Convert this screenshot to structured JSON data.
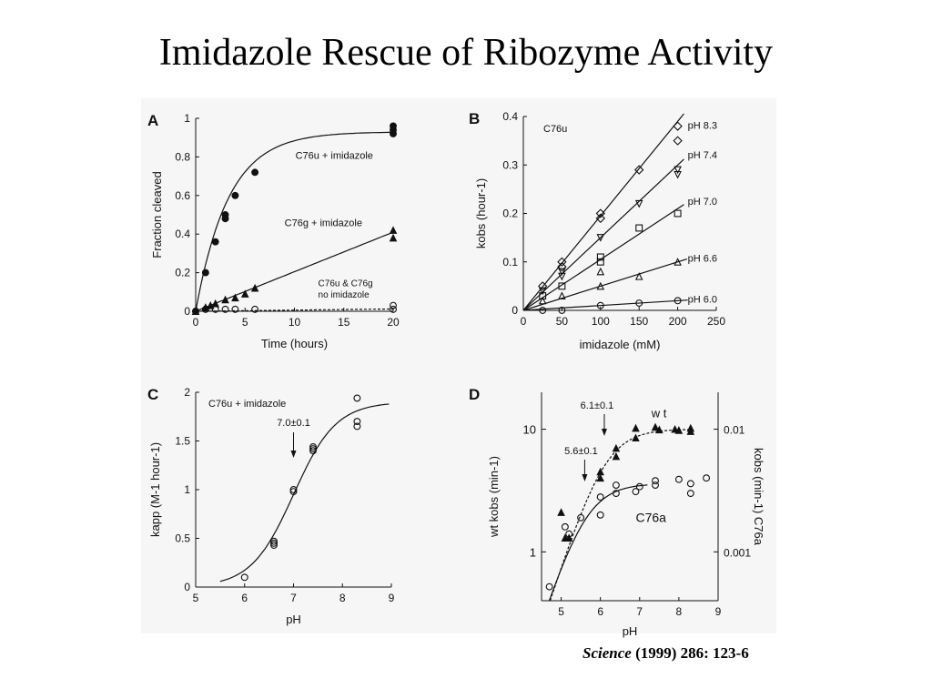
{
  "slide": {
    "title": "Imidazole Rescue of Ribozyme Activity",
    "citation_journal": "Science",
    "citation_rest": " (1999) 286:  123-6"
  },
  "chart_data": [
    {
      "panel": "A",
      "type": "scatter",
      "xlabel": "Time (hours)",
      "ylabel": "Fraction cleaved",
      "xlim": [
        0,
        20
      ],
      "ylim": [
        0,
        1
      ],
      "xticks": [
        0,
        5,
        10,
        15,
        20
      ],
      "xtick_labels": [
        "0",
        "5",
        "10",
        "15",
        "20"
      ],
      "yticks": [
        0,
        0.2,
        0.4,
        0.6,
        0.8,
        1
      ],
      "ytick_labels": [
        "0",
        "0.2",
        "0.4",
        "0.6",
        "0.8",
        "1"
      ],
      "series": [
        {
          "name": "C76u + imidazole",
          "marker": "filled-circle",
          "points": [
            [
              0,
              0
            ],
            [
              1,
              0.2
            ],
            [
              2,
              0.36
            ],
            [
              3,
              0.48
            ],
            [
              3,
              0.5
            ],
            [
              4,
              0.6
            ],
            [
              6,
              0.72
            ],
            [
              20,
              0.92
            ],
            [
              20,
              0.94
            ],
            [
              20,
              0.96
            ]
          ],
          "fit": "exp",
          "fit_params": {
            "ymax": 0.93,
            "k": 0.3
          }
        },
        {
          "name": "C76g + imidazole",
          "marker": "filled-triangle",
          "points": [
            [
              0,
              0
            ],
            [
              1,
              0.02
            ],
            [
              1.5,
              0.03
            ],
            [
              2,
              0.04
            ],
            [
              3,
              0.06
            ],
            [
              4,
              0.07
            ],
            [
              5,
              0.09
            ],
            [
              6,
              0.12
            ],
            [
              20,
              0.38
            ],
            [
              20,
              0.42
            ]
          ],
          "fit": "linear",
          "fit_params": {
            "slope": 0.0205,
            "intercept": 0
          }
        },
        {
          "name": "C76u & C76g\nno imidazole",
          "marker": "open-circle",
          "points": [
            [
              0,
              0
            ],
            [
              1,
              0.01
            ],
            [
              2,
              0.01
            ],
            [
              3,
              0.01
            ],
            [
              4,
              0.01
            ],
            [
              6,
              0.01
            ],
            [
              20,
              0.01
            ],
            [
              20,
              0.03
            ]
          ],
          "fit": "linear",
          "fit_params": {
            "slope": 0.0006,
            "intercept": 0
          }
        }
      ]
    },
    {
      "panel": "B",
      "type": "scatter",
      "xlabel": "imidazole (mM)",
      "ylabel": "kobs (hour-1)",
      "annotation": "C76u",
      "xlim": [
        0,
        250
      ],
      "ylim": [
        0,
        0.4
      ],
      "xticks": [
        0,
        50,
        100,
        150,
        200,
        250
      ],
      "xtick_labels": [
        "0",
        "50",
        "100",
        "150",
        "200",
        "250"
      ],
      "yticks": [
        0,
        0.1,
        0.2,
        0.3,
        0.4
      ],
      "ytick_labels": [
        "0",
        "0.1",
        "0.2",
        "0.3",
        "0.4"
      ],
      "series": [
        {
          "name": "pH 8.3",
          "marker": "open-diamond",
          "slope": 0.00195,
          "points": [
            [
              25,
              0.05
            ],
            [
              50,
              0.09
            ],
            [
              50,
              0.1
            ],
            [
              100,
              0.19
            ],
            [
              100,
              0.2
            ],
            [
              150,
              0.29
            ],
            [
              200,
              0.35
            ],
            [
              200,
              0.38
            ]
          ]
        },
        {
          "name": "pH 7.4",
          "marker": "open-down-triangle",
          "slope": 0.0015,
          "points": [
            [
              25,
              0.04
            ],
            [
              50,
              0.07
            ],
            [
              50,
              0.08
            ],
            [
              100,
              0.15
            ],
            [
              150,
              0.22
            ],
            [
              200,
              0.28
            ],
            [
              200,
              0.29
            ]
          ]
        },
        {
          "name": "pH 7.0",
          "marker": "open-square",
          "slope": 0.00105,
          "points": [
            [
              25,
              0.03
            ],
            [
              50,
              0.05
            ],
            [
              100,
              0.1
            ],
            [
              100,
              0.11
            ],
            [
              150,
              0.17
            ],
            [
              200,
              0.2
            ]
          ]
        },
        {
          "name": "pH 6.6",
          "marker": "open-triangle",
          "slope": 0.0005,
          "points": [
            [
              25,
              0.02
            ],
            [
              50,
              0.03
            ],
            [
              100,
              0.05
            ],
            [
              100,
              0.08
            ],
            [
              150,
              0.07
            ],
            [
              200,
              0.1
            ]
          ]
        },
        {
          "name": "pH 6.0",
          "marker": "open-circle",
          "slope": 0.0001,
          "points": [
            [
              25,
              0.0
            ],
            [
              50,
              0.0
            ],
            [
              100,
              0.01
            ],
            [
              150,
              0.015
            ],
            [
              200,
              0.02
            ]
          ]
        }
      ]
    },
    {
      "panel": "C",
      "type": "scatter",
      "xlabel": "pH",
      "ylabel": "kapp (M-1 hour-1)",
      "annotation": "C76u + imidazole",
      "arrow_label": "7.0±0.1",
      "arrow_x": 7.0,
      "xlim": [
        5,
        9
      ],
      "ylim": [
        0,
        2
      ],
      "xticks": [
        5,
        6,
        7,
        8,
        9
      ],
      "xtick_labels": [
        "5",
        "6",
        "7",
        "8",
        "9"
      ],
      "yticks": [
        0,
        0.5,
        1,
        1.5,
        2
      ],
      "ytick_labels": [
        "0",
        "0.5",
        "1",
        "1.5",
        "2"
      ],
      "series": [
        {
          "name": "",
          "marker": "open-circle",
          "points": [
            [
              6.0,
              0.1
            ],
            [
              6.6,
              0.43
            ],
            [
              6.6,
              0.45
            ],
            [
              6.6,
              0.47
            ],
            [
              7.0,
              0.98
            ],
            [
              7.0,
              1.0
            ],
            [
              7.4,
              1.4
            ],
            [
              7.4,
              1.42
            ],
            [
              7.4,
              1.44
            ],
            [
              8.3,
              1.65
            ],
            [
              8.3,
              1.7
            ],
            [
              8.3,
              1.94
            ]
          ]
        }
      ],
      "fit": {
        "ymax": 1.9,
        "pKa": 7.0,
        "xstart": 5.5,
        "xend": 8.95
      }
    },
    {
      "panel": "D",
      "type": "scatter",
      "xlabel": "pH",
      "ylabel_left": "wt kobs (min-1)",
      "ylabel_right": "kobs (min-1) C76a",
      "log_y": true,
      "xlim": [
        4.5,
        9
      ],
      "ylim": [
        0.4,
        20
      ],
      "xticks": [
        5,
        6,
        7,
        8,
        9
      ],
      "xtick_labels": [
        "5",
        "6",
        "7",
        "8",
        "9"
      ],
      "yticks_left": [
        1,
        10
      ],
      "ytick_labels_left": [
        "1",
        "10"
      ],
      "yticks_right": [
        0.001,
        0.01
      ],
      "ytick_labels_right": [
        "0.001",
        "0.01"
      ],
      "right_axis_factor": 0.001,
      "arrows": [
        {
          "label": "6.1±0.1",
          "x": 6.1
        },
        {
          "label": "5.6±0.1",
          "x": 5.6
        }
      ],
      "series": [
        {
          "name": "w t",
          "marker": "filled-triangle",
          "pKa": 6.1,
          "ymax": 10,
          "points": [
            [
              5.0,
              2.1
            ],
            [
              5.1,
              1.3
            ],
            [
              5.2,
              1.3
            ],
            [
              6.0,
              4.5
            ],
            [
              6.0,
              4.0
            ],
            [
              6.4,
              6.0
            ],
            [
              6.4,
              7.0
            ],
            [
              6.9,
              10.2
            ],
            [
              6.9,
              8.5
            ],
            [
              7.4,
              10.4
            ],
            [
              7.5,
              9.9
            ],
            [
              7.9,
              10.0
            ],
            [
              8.0,
              9.8
            ],
            [
              8.3,
              10.2
            ],
            [
              8.3,
              9.6
            ]
          ]
        },
        {
          "name": "C76a",
          "marker": "open-circle",
          "pKa": 5.6,
          "ymax": 3.6,
          "points": [
            [
              4.7,
              0.52
            ],
            [
              5.1,
              1.6
            ],
            [
              5.2,
              1.4
            ],
            [
              5.5,
              1.9
            ],
            [
              6.0,
              2.0
            ],
            [
              6.0,
              2.8
            ],
            [
              6.4,
              3.5
            ],
            [
              6.4,
              3.0
            ],
            [
              6.9,
              3.1
            ],
            [
              7.0,
              3.4
            ],
            [
              7.4,
              3.8
            ],
            [
              7.4,
              3.5
            ],
            [
              8.0,
              3.9
            ],
            [
              8.3,
              3.6
            ],
            [
              8.3,
              3.0
            ],
            [
              8.7,
              4.0
            ]
          ]
        }
      ]
    }
  ]
}
